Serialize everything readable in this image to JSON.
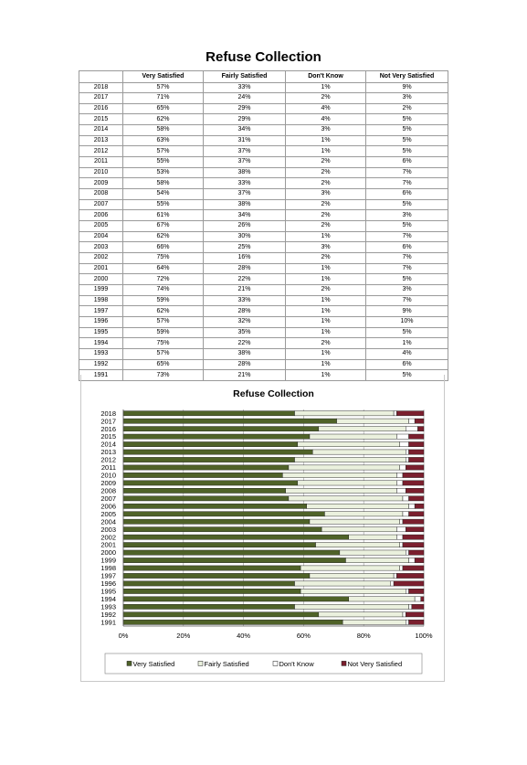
{
  "page": {
    "title": "Refuse Collection"
  },
  "table": {
    "headers": [
      "",
      "Very Satisfied",
      "Fairly Satisfied",
      "Don't Know",
      "Not Very Satisfied"
    ],
    "rows": [
      [
        "2018",
        "57%",
        "33%",
        "1%",
        "9%"
      ],
      [
        "2017",
        "71%",
        "24%",
        "2%",
        "3%"
      ],
      [
        "2016",
        "65%",
        "29%",
        "4%",
        "2%"
      ],
      [
        "2015",
        "62%",
        "29%",
        "4%",
        "5%"
      ],
      [
        "2014",
        "58%",
        "34%",
        "3%",
        "5%"
      ],
      [
        "2013",
        "63%",
        "31%",
        "1%",
        "5%"
      ],
      [
        "2012",
        "57%",
        "37%",
        "1%",
        "5%"
      ],
      [
        "2011",
        "55%",
        "37%",
        "2%",
        "6%"
      ],
      [
        "2010",
        "53%",
        "38%",
        "2%",
        "7%"
      ],
      [
        "2009",
        "58%",
        "33%",
        "2%",
        "7%"
      ],
      [
        "2008",
        "54%",
        "37%",
        "3%",
        "6%"
      ],
      [
        "2007",
        "55%",
        "38%",
        "2%",
        "5%"
      ],
      [
        "2006",
        "61%",
        "34%",
        "2%",
        "3%"
      ],
      [
        "2005",
        "67%",
        "26%",
        "2%",
        "5%"
      ],
      [
        "2004",
        "62%",
        "30%",
        "1%",
        "7%"
      ],
      [
        "2003",
        "66%",
        "25%",
        "3%",
        "6%"
      ],
      [
        "2002",
        "75%",
        "16%",
        "2%",
        "7%"
      ],
      [
        "2001",
        "64%",
        "28%",
        "1%",
        "7%"
      ],
      [
        "2000",
        "72%",
        "22%",
        "1%",
        "5%"
      ],
      [
        "1999",
        "74%",
        "21%",
        "2%",
        "3%"
      ],
      [
        "1998",
        "59%",
        "33%",
        "1%",
        "7%"
      ],
      [
        "1997",
        "62%",
        "28%",
        "1%",
        "9%"
      ],
      [
        "1996",
        "57%",
        "32%",
        "1%",
        "10%"
      ],
      [
        "1995",
        "59%",
        "35%",
        "1%",
        "5%"
      ],
      [
        "1994",
        "75%",
        "22%",
        "2%",
        "1%"
      ],
      [
        "1993",
        "57%",
        "38%",
        "1%",
        "4%"
      ],
      [
        "1992",
        "65%",
        "28%",
        "1%",
        "6%"
      ],
      [
        "1991",
        "73%",
        "21%",
        "1%",
        "5%"
      ]
    ]
  },
  "chart_data": {
    "type": "bar",
    "orientation": "horizontal",
    "stacked": "percent",
    "title": "Refuse Collection",
    "categories": [
      "2018",
      "2017",
      "2016",
      "2015",
      "2014",
      "2013",
      "2012",
      "2011",
      "2010",
      "2009",
      "2008",
      "2007",
      "2006",
      "2005",
      "2004",
      "2003",
      "2002",
      "2001",
      "2000",
      "1999",
      "1998",
      "1997",
      "1996",
      "1995",
      "1994",
      "1993",
      "1992",
      "1991"
    ],
    "series": [
      {
        "name": "Very Satisfied",
        "color": "#4f6228",
        "values": [
          57,
          71,
          65,
          62,
          58,
          63,
          57,
          55,
          53,
          58,
          54,
          55,
          61,
          67,
          62,
          66,
          75,
          64,
          72,
          74,
          59,
          62,
          57,
          59,
          75,
          57,
          65,
          73
        ]
      },
      {
        "name": "Fairly Satisfied",
        "color": "#ebf1de",
        "values": [
          33,
          24,
          29,
          29,
          34,
          31,
          37,
          37,
          38,
          33,
          37,
          38,
          34,
          26,
          30,
          25,
          16,
          28,
          22,
          21,
          33,
          28,
          32,
          35,
          22,
          38,
          28,
          21
        ]
      },
      {
        "name": "Don't Know",
        "color": "#ffffff",
        "values": [
          1,
          2,
          4,
          4,
          3,
          1,
          1,
          2,
          2,
          2,
          3,
          2,
          2,
          2,
          1,
          3,
          2,
          1,
          1,
          2,
          1,
          1,
          1,
          1,
          2,
          1,
          1,
          1
        ]
      },
      {
        "name": "Not Very Satisfied",
        "color": "#7b1f2e",
        "values": [
          9,
          3,
          2,
          5,
          5,
          5,
          5,
          6,
          7,
          7,
          6,
          5,
          3,
          5,
          7,
          6,
          7,
          7,
          5,
          3,
          7,
          9,
          10,
          5,
          1,
          4,
          6,
          5
        ]
      }
    ],
    "x_ticks": [
      "0%",
      "20%",
      "40%",
      "60%",
      "80%",
      "100%"
    ],
    "xlim": [
      0,
      100
    ],
    "grid": true,
    "legend_position": "bottom"
  }
}
